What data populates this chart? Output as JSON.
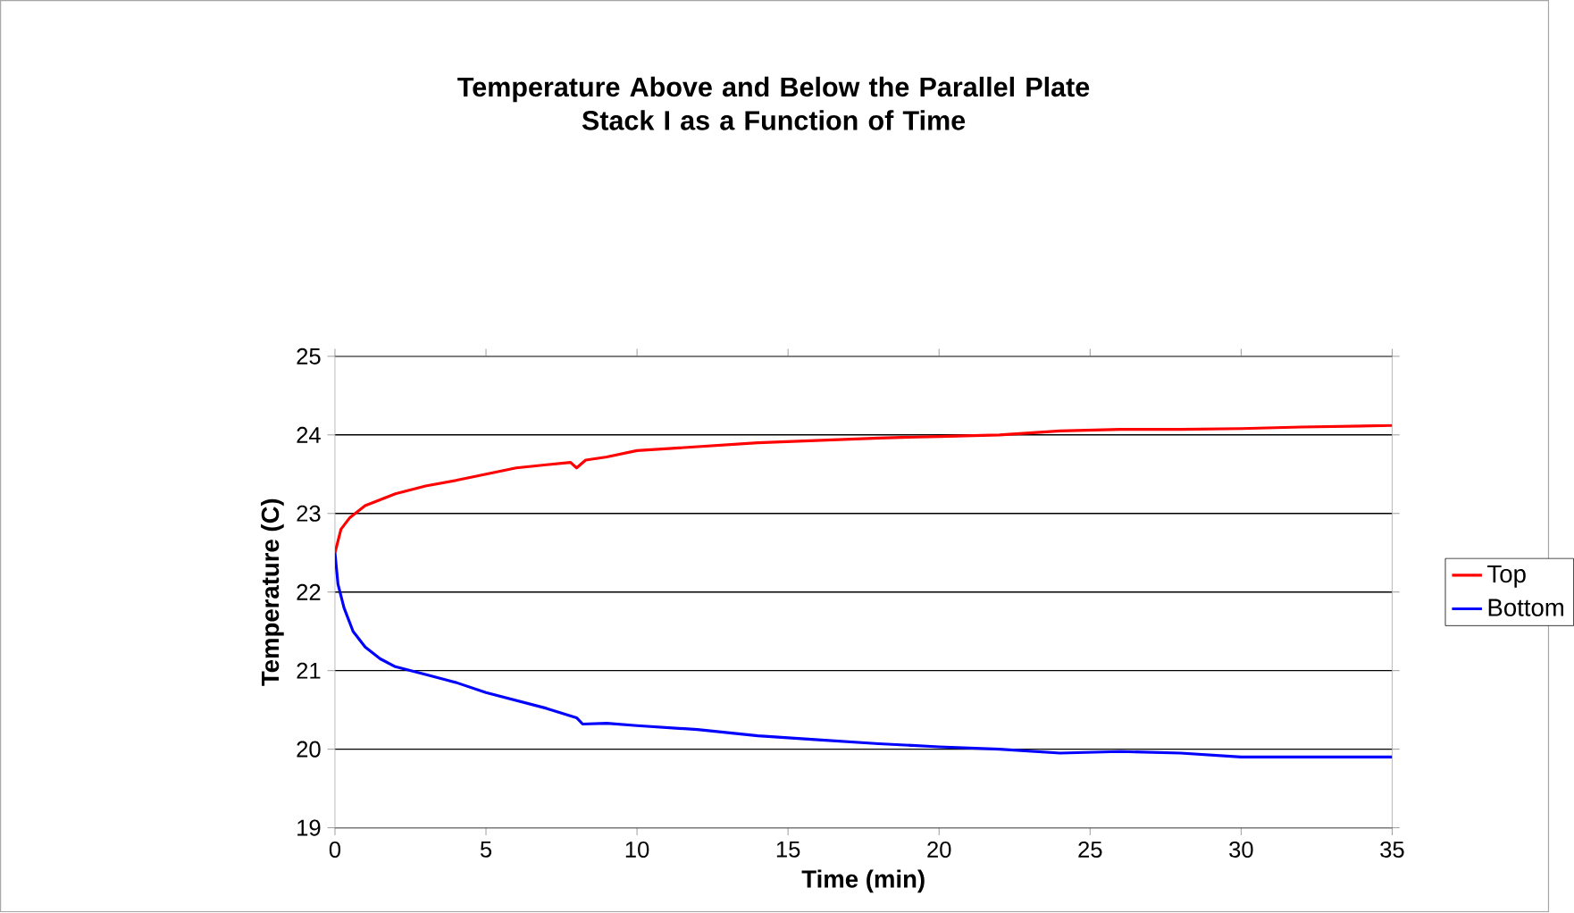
{
  "chart_data": {
    "type": "line",
    "title": "Temperature Above and Below the Parallel Plate\nStack I as a Function of Time",
    "xlabel": "Time (min)",
    "ylabel": "Temperature (C)",
    "xlim": [
      0,
      35
    ],
    "xticks": [
      0,
      5,
      10,
      15,
      20,
      25,
      30,
      35
    ],
    "ylim": [
      19,
      25
    ],
    "yticks": [
      19,
      20,
      21,
      22,
      23,
      24,
      25
    ],
    "grid": "y",
    "legend": "right",
    "marker": "none",
    "line_style": "solid",
    "series": [
      {
        "name": "Top",
        "color": "#ff0000",
        "x": [
          0,
          0.2,
          0.5,
          1,
          2,
          3,
          4,
          5,
          6,
          7,
          7.8,
          8,
          8.3,
          9,
          10,
          12,
          14,
          16,
          18,
          20,
          22,
          24,
          26,
          28,
          30,
          32,
          35
        ],
        "values": [
          22.5,
          22.8,
          22.95,
          23.1,
          23.25,
          23.35,
          23.42,
          23.5,
          23.58,
          23.62,
          23.65,
          23.58,
          23.68,
          23.72,
          23.8,
          23.85,
          23.9,
          23.93,
          23.96,
          23.98,
          24.0,
          24.05,
          24.07,
          24.07,
          24.08,
          24.1,
          24.12
        ]
      },
      {
        "name": "Bottom",
        "color": "#0000ff",
        "x": [
          0,
          0.1,
          0.3,
          0.6,
          1,
          1.5,
          2,
          3,
          4,
          5,
          6,
          7,
          8,
          8.2,
          9,
          10,
          12,
          14,
          16,
          18,
          20,
          22,
          24,
          26,
          28,
          30,
          32,
          35
        ],
        "values": [
          22.5,
          22.1,
          21.8,
          21.5,
          21.3,
          21.15,
          21.05,
          20.95,
          20.85,
          20.72,
          20.62,
          20.52,
          20.4,
          20.32,
          20.33,
          20.3,
          20.25,
          20.17,
          20.12,
          20.07,
          20.03,
          20.0,
          19.95,
          19.97,
          19.95,
          19.9,
          19.9,
          19.9
        ]
      }
    ]
  }
}
